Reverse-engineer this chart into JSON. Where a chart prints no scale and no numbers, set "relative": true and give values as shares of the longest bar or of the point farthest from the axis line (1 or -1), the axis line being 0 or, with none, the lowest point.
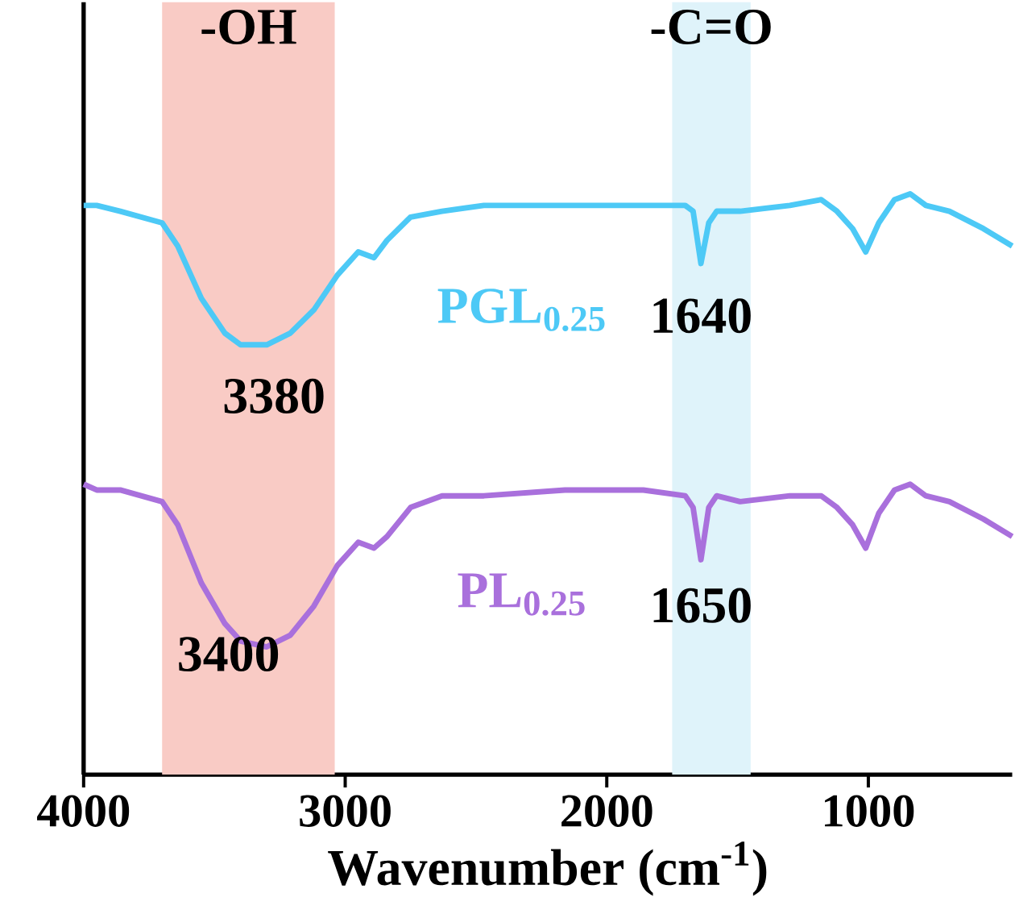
{
  "chart_data": {
    "type": "line",
    "relative": true,
    "xlabel": "Wavenumber (cm$^{-1}$)",
    "x": [
      4000,
      3950,
      3860,
      3700,
      3640,
      3550,
      3460,
      3400,
      3300,
      3210,
      3120,
      3030,
      2950,
      2890,
      2840,
      2750,
      2630,
      2470,
      2160,
      1860,
      1700,
      1670,
      1640,
      1610,
      1580,
      1490,
      1300,
      1180,
      1120,
      1060,
      1010,
      960,
      900,
      840,
      780,
      690,
      560,
      450
    ],
    "xlim": [
      4000,
      450
    ],
    "xticks": [
      4000,
      3000,
      2000,
      1000
    ],
    "grid": false,
    "marker": "none",
    "line_style": "solid",
    "series": [
      {
        "name": "PGL$_{0.25}$",
        "color": "#4dc9f6",
        "values": [
          0.98,
          0.98,
          0.97,
          0.95,
          0.91,
          0.82,
          0.76,
          0.74,
          0.74,
          0.76,
          0.8,
          0.86,
          0.9,
          0.89,
          0.92,
          0.96,
          0.97,
          0.98,
          0.98,
          0.98,
          0.98,
          0.97,
          0.88,
          0.95,
          0.97,
          0.97,
          0.98,
          0.99,
          0.97,
          0.94,
          0.9,
          0.95,
          0.99,
          1.0,
          0.98,
          0.97,
          0.94,
          0.91
        ]
      },
      {
        "name": "PL$_{0.25}$",
        "color": "#a970dc",
        "values": [
          0.5,
          0.49,
          0.49,
          0.47,
          0.43,
          0.33,
          0.26,
          0.23,
          0.22,
          0.24,
          0.29,
          0.36,
          0.4,
          0.39,
          0.41,
          0.46,
          0.48,
          0.48,
          0.49,
          0.49,
          0.48,
          0.46,
          0.37,
          0.46,
          0.48,
          0.47,
          0.48,
          0.48,
          0.46,
          0.43,
          0.39,
          0.45,
          0.49,
          0.5,
          0.48,
          0.47,
          0.44,
          0.41
        ]
      }
    ],
    "bands": [
      {
        "axis": "x",
        "from": 3700,
        "to": 3040,
        "label": "-OH",
        "color": "#f9cbc5"
      },
      {
        "axis": "x",
        "from": 1750,
        "to": 1450,
        "label": "-C=O",
        "color": "#dff3fa"
      }
    ],
    "annotations": [
      "3380",
      "3400",
      "1640",
      "1650"
    ]
  }
}
